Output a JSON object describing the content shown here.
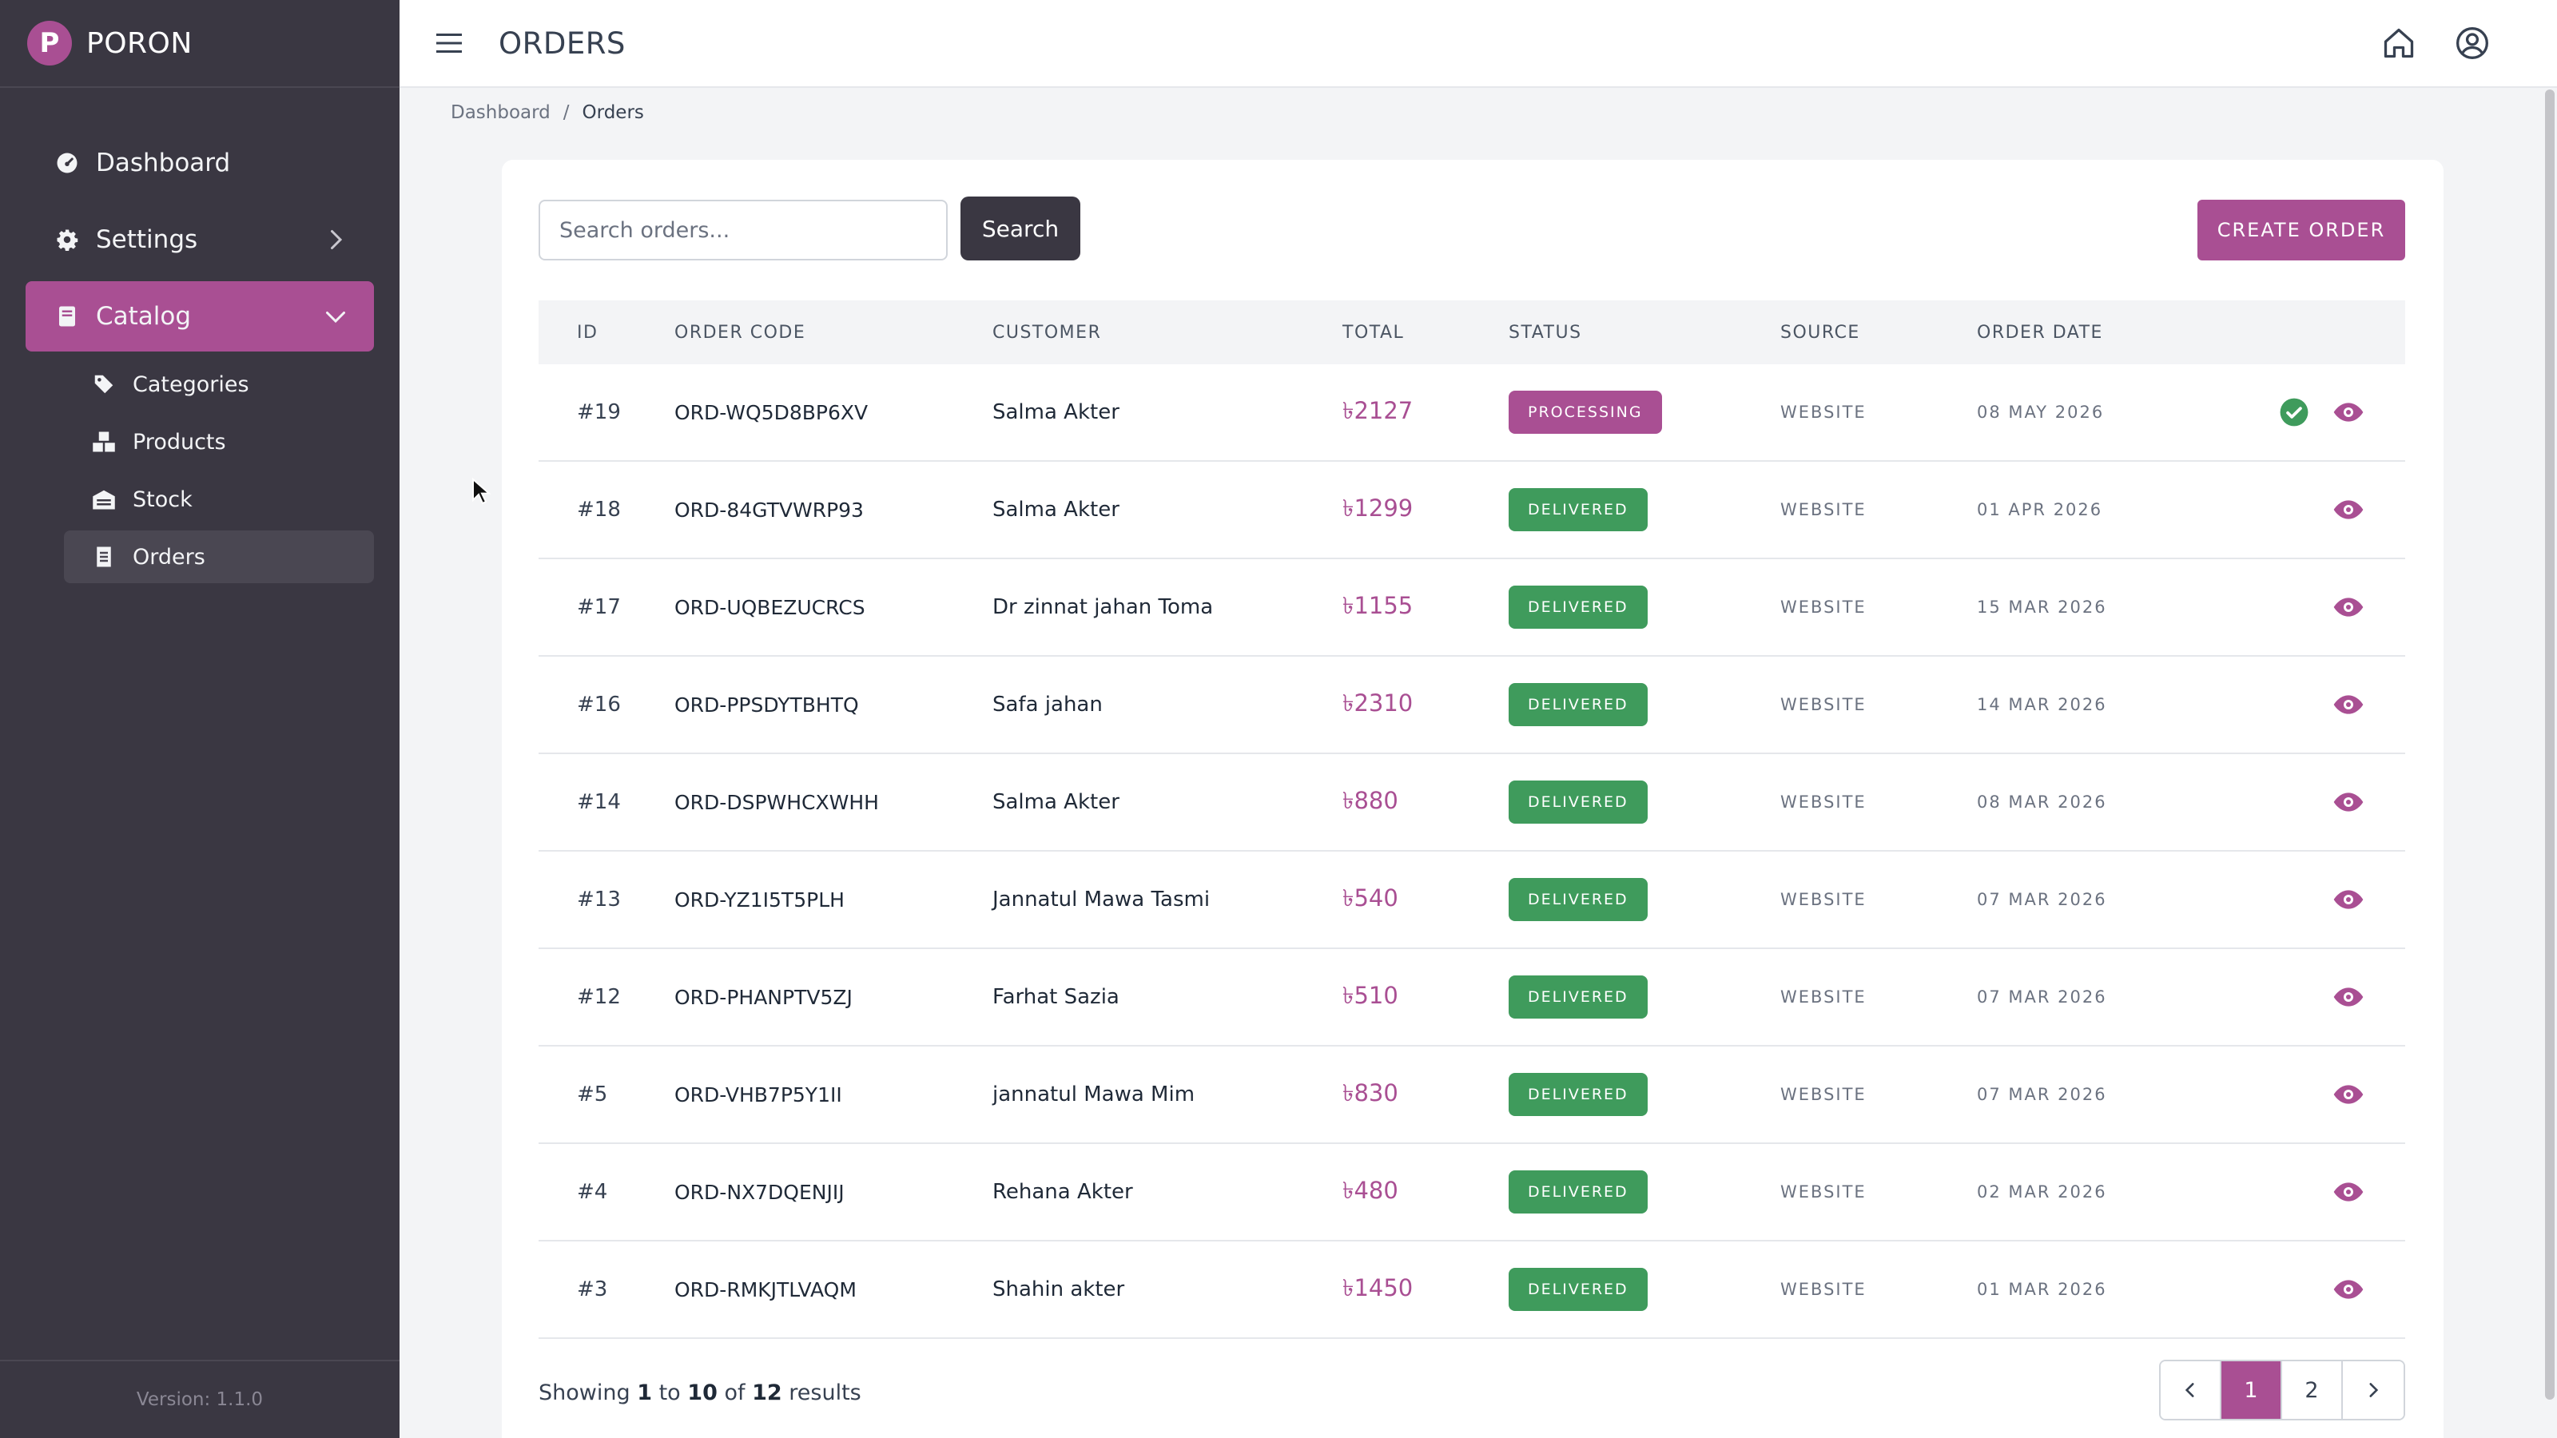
{
  "brand": {
    "name": "PORON",
    "logo_letter": "P"
  },
  "sidebar": {
    "items": [
      {
        "label": "Dashboard",
        "icon": "dashboard-icon"
      },
      {
        "label": "Settings",
        "icon": "gear-icon"
      },
      {
        "label": "Catalog",
        "icon": "book-icon"
      }
    ],
    "catalog_sub": [
      {
        "label": "Categories",
        "icon": "tag-icon"
      },
      {
        "label": "Products",
        "icon": "boxes-icon"
      },
      {
        "label": "Stock",
        "icon": "warehouse-icon"
      },
      {
        "label": "Orders",
        "icon": "receipt-icon"
      }
    ],
    "version": "Version: 1.1.0"
  },
  "topbar": {
    "title": "ORDERS"
  },
  "breadcrumb": {
    "root": "Dashboard",
    "sep": "/",
    "current": "Orders"
  },
  "search": {
    "placeholder": "Search orders...",
    "value": "",
    "button": "Search"
  },
  "create_button": "CREATE ORDER",
  "table": {
    "headers": [
      "ID",
      "ORDER CODE",
      "CUSTOMER",
      "TOTAL",
      "STATUS",
      "SOURCE",
      "ORDER DATE"
    ],
    "rows": [
      {
        "id": "#19",
        "code": "ORD-WQ5D8BP6XV",
        "customer": "Salma Akter",
        "total": "৳2127",
        "status": "PROCESSING",
        "source": "WEBSITE",
        "date": "08 MAY 2026"
      },
      {
        "id": "#18",
        "code": "ORD-84GTVWRP93",
        "customer": "Salma Akter",
        "total": "৳1299",
        "status": "DELIVERED",
        "source": "WEBSITE",
        "date": "01 APR 2026"
      },
      {
        "id": "#17",
        "code": "ORD-UQBEZUCRCS",
        "customer": "Dr zinnat jahan Toma",
        "total": "৳1155",
        "status": "DELIVERED",
        "source": "WEBSITE",
        "date": "15 MAR 2026"
      },
      {
        "id": "#16",
        "code": "ORD-PPSDYTBHTQ",
        "customer": "Safa jahan",
        "total": "৳2310",
        "status": "DELIVERED",
        "source": "WEBSITE",
        "date": "14 MAR 2026"
      },
      {
        "id": "#14",
        "code": "ORD-DSPWHCXWHH",
        "customer": "Salma Akter",
        "total": "৳880",
        "status": "DELIVERED",
        "source": "WEBSITE",
        "date": "08 MAR 2026"
      },
      {
        "id": "#13",
        "code": "ORD-YZ1I5T5PLH",
        "customer": "Jannatul Mawa Tasmi",
        "total": "৳540",
        "status": "DELIVERED",
        "source": "WEBSITE",
        "date": "07 MAR 2026"
      },
      {
        "id": "#12",
        "code": "ORD-PHANPTV5ZJ",
        "customer": "Farhat Sazia",
        "total": "৳510",
        "status": "DELIVERED",
        "source": "WEBSITE",
        "date": "07 MAR 2026"
      },
      {
        "id": "#5",
        "code": "ORD-VHB7P5Y1II",
        "customer": "jannatul Mawa Mim",
        "total": "৳830",
        "status": "DELIVERED",
        "source": "WEBSITE",
        "date": "07 MAR 2026"
      },
      {
        "id": "#4",
        "code": "ORD-NX7DQENJIJ",
        "customer": "Rehana Akter",
        "total": "৳480",
        "status": "DELIVERED",
        "source": "WEBSITE",
        "date": "02 MAR 2026"
      },
      {
        "id": "#3",
        "code": "ORD-RMKJTLVAQM",
        "customer": "Shahin akter",
        "total": "৳1450",
        "status": "DELIVERED",
        "source": "WEBSITE",
        "date": "01 MAR 2026"
      }
    ]
  },
  "pagination": {
    "showing_prefix": "Showing",
    "from": "1",
    "to_word": "to",
    "to": "10",
    "of_word": "of",
    "total": "12",
    "suffix": "results",
    "pages": [
      "1",
      "2"
    ],
    "current": "1"
  },
  "colors": {
    "accent": "#a94f93",
    "sidebar": "#3a3742",
    "success": "#3f9b5c"
  }
}
